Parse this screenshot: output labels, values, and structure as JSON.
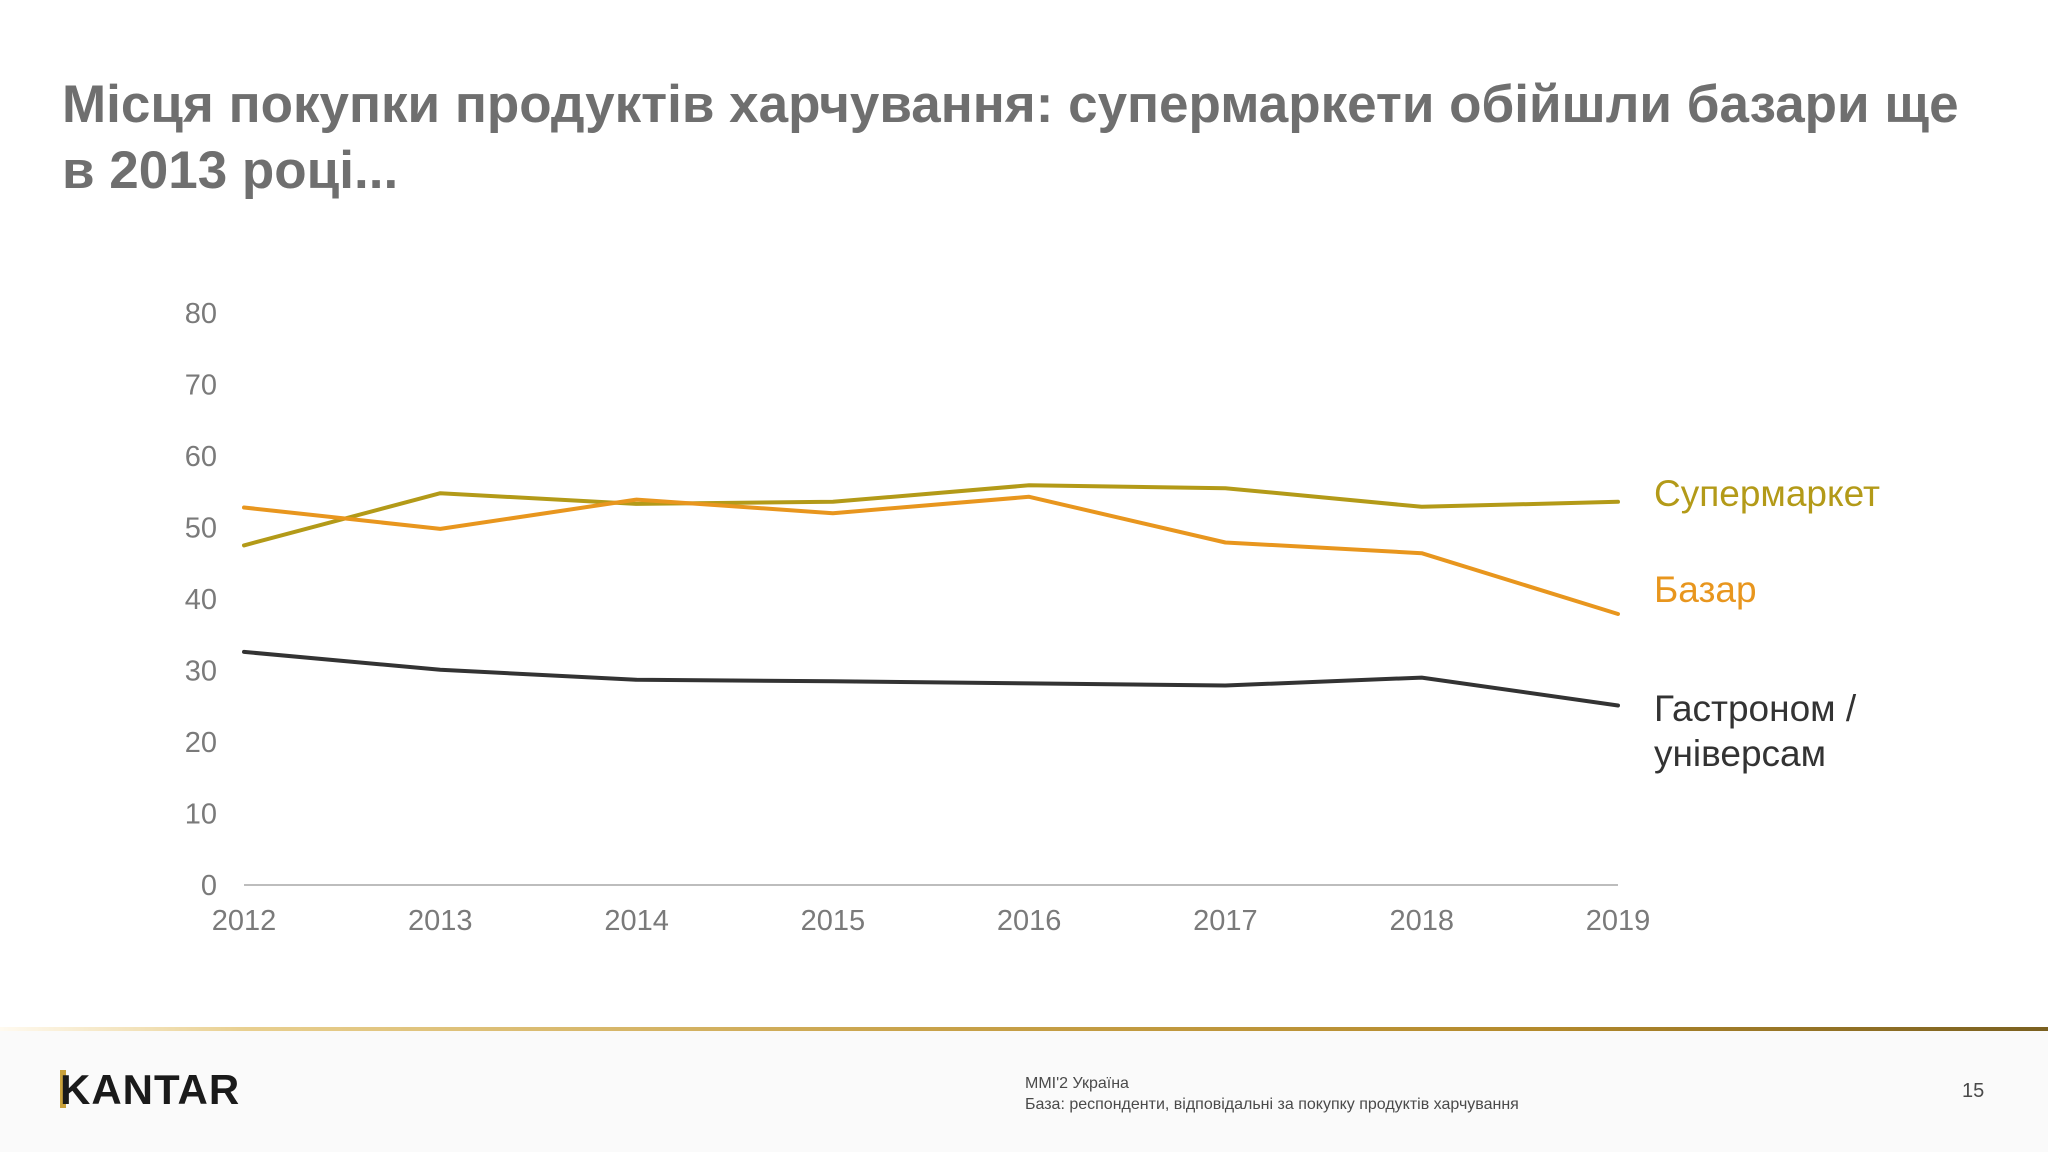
{
  "slide": {
    "title": "Місця покупки продуктів харчування: супермаркети обійшли базари ще в 2013 році...",
    "page_number": "15"
  },
  "footer": {
    "logo_text": "KANTAR",
    "source_line1": "MMI'2 Україна",
    "source_line2": "База: респонденти, відповідальні за покупку продуктів харчування"
  },
  "colors": {
    "supermarket": "#b39a18",
    "bazaar": "#e8961e",
    "grocery": "#333333",
    "axis": "#bdbdbd",
    "title": "#6f6f6f",
    "accent_gold": "#c9a13b"
  },
  "chart_data": {
    "type": "line",
    "title": "",
    "xlabel": "",
    "ylabel": "",
    "x": [
      "2012",
      "2013",
      "2014",
      "2015",
      "2016",
      "2017",
      "2018",
      "2019"
    ],
    "ylim": [
      0,
      80
    ],
    "yticks": [
      "0",
      "10",
      "20",
      "30",
      "40",
      "50",
      "60",
      "70",
      "80"
    ],
    "grid": false,
    "series": [
      {
        "name": "Супермаркет",
        "color_key": "supermarket",
        "values": [
          47.5,
          54.8,
          53.3,
          53.6,
          55.9,
          55.5,
          52.9,
          53.6
        ]
      },
      {
        "name": "Базар",
        "color_key": "bazaar",
        "values": [
          52.8,
          49.8,
          53.9,
          52.0,
          54.3,
          47.9,
          46.4,
          37.9
        ]
      },
      {
        "name": "Гастроном / універсам",
        "label_lines": [
          "Гастроном /",
          "універсам"
        ],
        "color_key": "grocery",
        "values": [
          32.6,
          30.1,
          28.7,
          28.5,
          28.2,
          27.9,
          29.0,
          25.1
        ]
      }
    ]
  }
}
